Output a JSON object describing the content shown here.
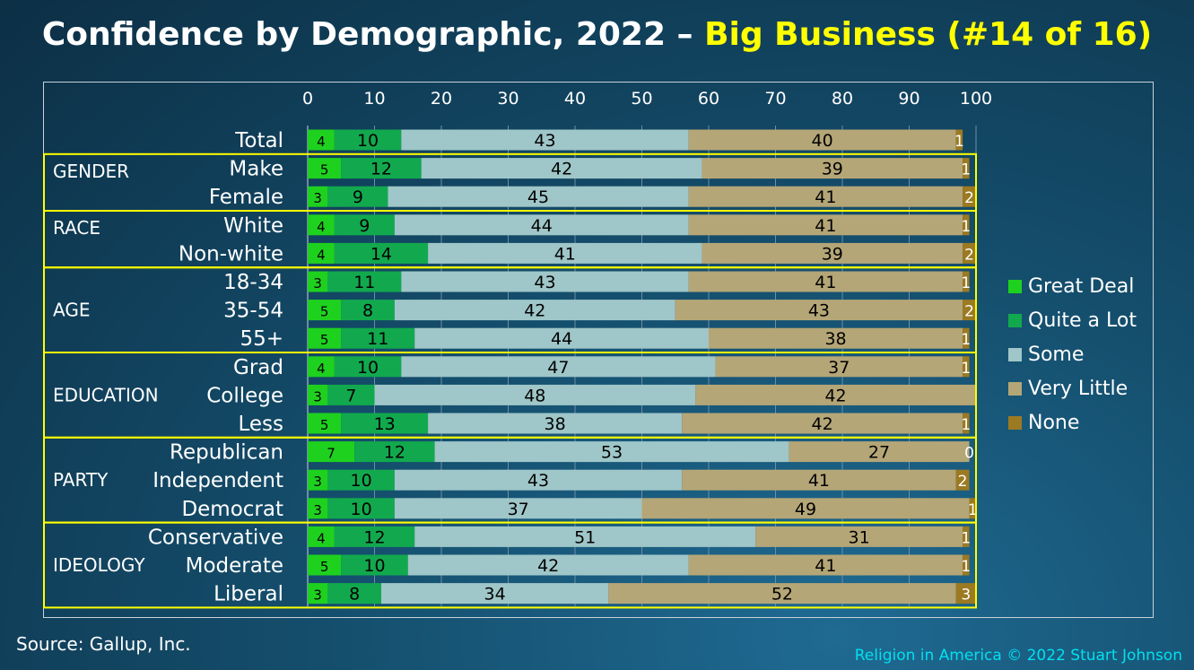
{
  "title": {
    "main": "Confidence by Demographic, 2022 – ",
    "highlight": "Big Business (#14 of 16)",
    "highlight_color": "#ffff00"
  },
  "source": "Source: Gallup, Inc.",
  "credit": "Religion in America © 2022 Stuart Johnson",
  "legend": [
    {
      "label": "Great Deal",
      "color": "#1fd11f"
    },
    {
      "label": "Quite a Lot",
      "color": "#12a94e"
    },
    {
      "label": "Some",
      "color": "#9fc6c8"
    },
    {
      "label": "Very Little",
      "color": "#b5a677"
    },
    {
      "label": "None",
      "color": "#9c7a22"
    }
  ],
  "chart_data": {
    "type": "bar",
    "orientation": "horizontal",
    "stacked": true,
    "xlim": [
      0,
      100
    ],
    "x_ticks": [
      "0",
      "10",
      "20",
      "30",
      "40",
      "50",
      "60",
      "70",
      "80",
      "90",
      "100"
    ],
    "grid": true,
    "legend_position": "right",
    "categories": [
      "Total",
      "Make",
      "Female",
      "White",
      "Non-white",
      "18-34",
      "35-54",
      "55+",
      "Grad",
      "College",
      "Less",
      "Republican",
      "Independent",
      "Democrat",
      "Conservative",
      "Moderate",
      "Liberal"
    ],
    "series": [
      {
        "name": "Great Deal",
        "color": "#1fd11f",
        "values": [
          4,
          5,
          3,
          4,
          4,
          3,
          5,
          5,
          4,
          3,
          5,
          7,
          3,
          3,
          4,
          5,
          3
        ]
      },
      {
        "name": "Quite a Lot",
        "color": "#12a94e",
        "values": [
          10,
          12,
          9,
          9,
          14,
          11,
          8,
          11,
          10,
          7,
          13,
          12,
          10,
          10,
          12,
          10,
          8
        ]
      },
      {
        "name": "Some",
        "color": "#9fc6c8",
        "values": [
          43,
          42,
          45,
          44,
          41,
          43,
          42,
          44,
          47,
          48,
          38,
          53,
          43,
          37,
          51,
          42,
          34
        ]
      },
      {
        "name": "Very Little",
        "color": "#b5a677",
        "values": [
          40,
          39,
          41,
          41,
          39,
          41,
          43,
          38,
          37,
          42,
          42,
          27,
          41,
          49,
          31,
          41,
          52
        ]
      },
      {
        "name": "None",
        "color": "#9c7a22",
        "values": [
          1,
          1,
          2,
          1,
          2,
          1,
          2,
          1,
          1,
          null,
          1,
          0,
          2,
          1,
          1,
          1,
          3
        ]
      }
    ],
    "groups": [
      {
        "label": "GENDER",
        "rows": [
          "Make",
          "Female"
        ]
      },
      {
        "label": "RACE",
        "rows": [
          "White",
          "Non-white"
        ]
      },
      {
        "label": "AGE",
        "rows": [
          "18-34",
          "35-54",
          "55+"
        ]
      },
      {
        "label": "EDUCATION",
        "rows": [
          "Grad",
          "College",
          "Less"
        ]
      },
      {
        "label": "PARTY",
        "rows": [
          "Republican",
          "Independent",
          "Democrat"
        ]
      },
      {
        "label": "IDEOLOGY",
        "rows": [
          "Conservative",
          "Moderate",
          "Liberal"
        ]
      }
    ],
    "group_box_color": "#ffff00"
  }
}
